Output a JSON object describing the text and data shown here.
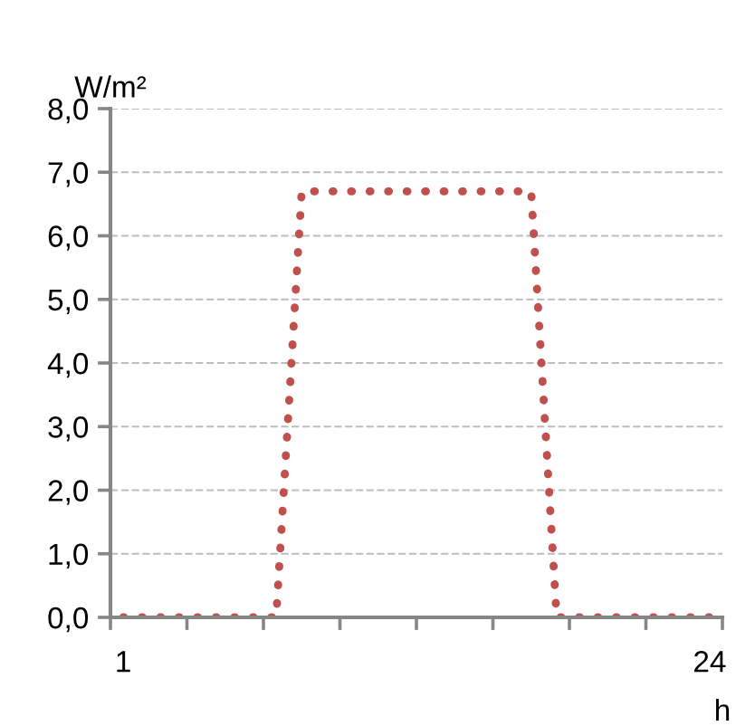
{
  "chart_data": {
    "type": "line",
    "ylabel": "W/m²",
    "xlabel": "h",
    "x": [
      1,
      2,
      3,
      4,
      5,
      6,
      7,
      8,
      9,
      10,
      11,
      12,
      13,
      14,
      15,
      16,
      17,
      18,
      19,
      20,
      21,
      22,
      23,
      24
    ],
    "series": [
      {
        "color": "#c0504d",
        "values": [
          0,
          0,
          0,
          0,
          0,
          0,
          0,
          6.7,
          6.7,
          6.7,
          6.7,
          6.7,
          6.7,
          6.7,
          6.7,
          6.7,
          6.7,
          0,
          0,
          0,
          0,
          0,
          0,
          0
        ]
      }
    ],
    "line_style": "dotted",
    "marker": "none",
    "xlim": [
      0.5,
      24.5
    ],
    "xticks": [
      {
        "value": 0.5,
        "label": null
      },
      {
        "value": 1,
        "label": "1"
      },
      {
        "value": 3.5,
        "label": null
      },
      {
        "value": 6.5,
        "label": null
      },
      {
        "value": 9.5,
        "label": null
      },
      {
        "value": 12.5,
        "label": null
      },
      {
        "value": 15.5,
        "label": null
      },
      {
        "value": 18.5,
        "label": null
      },
      {
        "value": 21.5,
        "label": null
      },
      {
        "value": 24,
        "label": "24"
      },
      {
        "value": 24.5,
        "label": null
      }
    ],
    "ylim": [
      0,
      8
    ],
    "yticks": [
      {
        "value": 0,
        "label": "0,0"
      },
      {
        "value": 1,
        "label": "1,0"
      },
      {
        "value": 2,
        "label": "2,0"
      },
      {
        "value": 3,
        "label": "3,0"
      },
      {
        "value": 4,
        "label": "4,0"
      },
      {
        "value": 5,
        "label": "5,0"
      },
      {
        "value": 6,
        "label": "6,0"
      },
      {
        "value": 7,
        "label": "7,0"
      },
      {
        "value": 8,
        "label": "8,0"
      }
    ],
    "grid": "y",
    "legend": false
  }
}
